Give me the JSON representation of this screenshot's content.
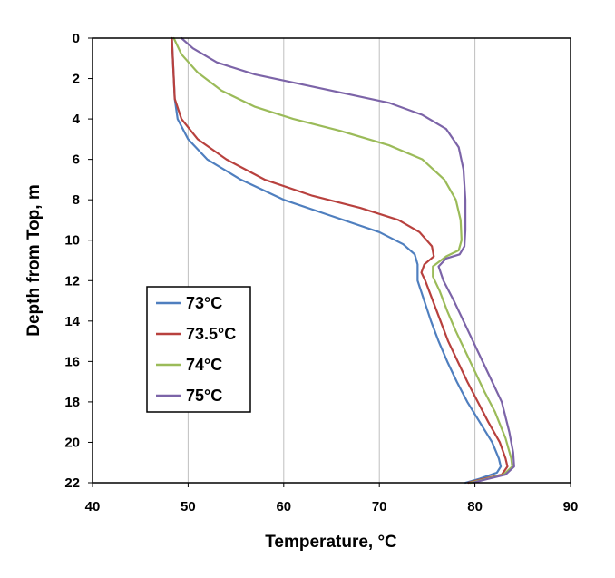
{
  "chart_data": {
    "type": "line",
    "xlabel": "Temperature, °C",
    "ylabel": "Depth from Top, m",
    "xlim": [
      40,
      90
    ],
    "ylim": [
      0,
      22
    ],
    "y_inverted": true,
    "x_ticks": [
      "40",
      "50",
      "60",
      "70",
      "80",
      "90"
    ],
    "y_ticks": [
      "0",
      "2",
      "4",
      "6",
      "8",
      "10",
      "12",
      "14",
      "16",
      "18",
      "20",
      "22"
    ],
    "grid": "vertical",
    "legend_position": "lower-left",
    "series": [
      {
        "name": "73°C",
        "color": "#4f7fbf",
        "points": [
          [
            48.3,
            0
          ],
          [
            48.4,
            1
          ],
          [
            48.5,
            2
          ],
          [
            48.6,
            3
          ],
          [
            48.9,
            4
          ],
          [
            50,
            5
          ],
          [
            52,
            6
          ],
          [
            55.5,
            7
          ],
          [
            60,
            8
          ],
          [
            65,
            8.8
          ],
          [
            70,
            9.6
          ],
          [
            72.5,
            10.2
          ],
          [
            73.7,
            10.7
          ],
          [
            74,
            11.2
          ],
          [
            74,
            12
          ],
          [
            74.7,
            13
          ],
          [
            75.4,
            14
          ],
          [
            76.2,
            15
          ],
          [
            77.1,
            16
          ],
          [
            78.1,
            17
          ],
          [
            79.2,
            18
          ],
          [
            80.5,
            19
          ],
          [
            81.8,
            20
          ],
          [
            82.5,
            20.8
          ],
          [
            82.7,
            21.2
          ],
          [
            82.3,
            21.5
          ],
          [
            80.5,
            21.8
          ],
          [
            79,
            22
          ]
        ]
      },
      {
        "name": "73.5°C",
        "color": "#b8413e",
        "points": [
          [
            48.3,
            0
          ],
          [
            48.4,
            1
          ],
          [
            48.5,
            2
          ],
          [
            48.6,
            3
          ],
          [
            49.3,
            4
          ],
          [
            51,
            5
          ],
          [
            54,
            6
          ],
          [
            58,
            7
          ],
          [
            63,
            7.8
          ],
          [
            68,
            8.4
          ],
          [
            72,
            9
          ],
          [
            74.2,
            9.6
          ],
          [
            75.5,
            10.3
          ],
          [
            75.7,
            10.8
          ],
          [
            74.7,
            11.2
          ],
          [
            74.4,
            11.6
          ],
          [
            74.8,
            12
          ],
          [
            75.6,
            13
          ],
          [
            76.4,
            14
          ],
          [
            77.2,
            15
          ],
          [
            78.2,
            16
          ],
          [
            79.2,
            17
          ],
          [
            80.3,
            18
          ],
          [
            81.4,
            19
          ],
          [
            82.6,
            20
          ],
          [
            83.2,
            20.8
          ],
          [
            83.4,
            21.2
          ],
          [
            82.8,
            21.6
          ],
          [
            80.5,
            21.85
          ],
          [
            79.3,
            22
          ]
        ]
      },
      {
        "name": "74°C",
        "color": "#9bbb59",
        "points": [
          [
            48.5,
            0
          ],
          [
            49.3,
            0.8
          ],
          [
            51,
            1.7
          ],
          [
            53.5,
            2.6
          ],
          [
            57,
            3.4
          ],
          [
            61,
            4
          ],
          [
            66,
            4.6
          ],
          [
            71,
            5.3
          ],
          [
            74.5,
            6
          ],
          [
            76.8,
            7
          ],
          [
            78,
            8
          ],
          [
            78.5,
            9
          ],
          [
            78.6,
            10
          ],
          [
            78.3,
            10.5
          ],
          [
            77,
            10.8
          ],
          [
            75.6,
            11.3
          ],
          [
            75.6,
            11.8
          ],
          [
            76.3,
            12.5
          ],
          [
            77.1,
            13.5
          ],
          [
            78,
            14.5
          ],
          [
            79,
            15.5
          ],
          [
            80,
            16.5
          ],
          [
            81,
            17.5
          ],
          [
            82.1,
            18.5
          ],
          [
            83.2,
            19.8
          ],
          [
            83.8,
            20.8
          ],
          [
            83.9,
            21.2
          ],
          [
            83,
            21.6
          ],
          [
            80.8,
            21.85
          ],
          [
            79.5,
            22
          ]
        ]
      },
      {
        "name": "75°C",
        "color": "#7c64a8",
        "points": [
          [
            49.3,
            0
          ],
          [
            50.5,
            0.5
          ],
          [
            53,
            1.2
          ],
          [
            57,
            1.8
          ],
          [
            62,
            2.3
          ],
          [
            67,
            2.8
          ],
          [
            71,
            3.2
          ],
          [
            74.5,
            3.8
          ],
          [
            77,
            4.5
          ],
          [
            78.3,
            5.4
          ],
          [
            78.8,
            6.5
          ],
          [
            79,
            8
          ],
          [
            79,
            9.5
          ],
          [
            78.9,
            10.3
          ],
          [
            78.4,
            10.7
          ],
          [
            77,
            10.9
          ],
          [
            76.2,
            11.3
          ],
          [
            76.7,
            12
          ],
          [
            77.8,
            13
          ],
          [
            78.8,
            14
          ],
          [
            79.8,
            15
          ],
          [
            80.8,
            16
          ],
          [
            81.8,
            17
          ],
          [
            82.8,
            18
          ],
          [
            83.6,
            19.5
          ],
          [
            84,
            20.5
          ],
          [
            84.1,
            21.2
          ],
          [
            83.2,
            21.6
          ],
          [
            81,
            21.85
          ],
          [
            79.8,
            22
          ]
        ]
      }
    ]
  }
}
